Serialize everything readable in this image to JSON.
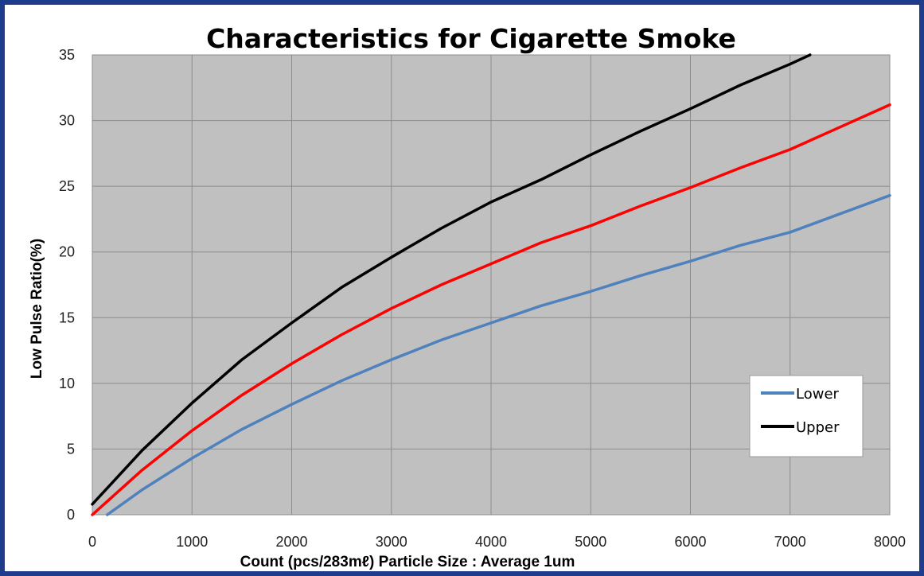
{
  "chart_data": {
    "type": "line",
    "title": "Characteristics for Cigarette Smoke",
    "xlabel": "Count (pcs/283mℓ)  Particle Size : Average 1um",
    "ylabel": "Low Pulse Ratio(%)",
    "xlim": [
      0,
      8000
    ],
    "ylim": [
      0,
      35
    ],
    "xticks": [
      0,
      1000,
      2000,
      3000,
      4000,
      5000,
      6000,
      7000,
      8000
    ],
    "yticks": [
      0,
      5,
      10,
      15,
      20,
      25,
      30,
      35
    ],
    "grid": true,
    "plot_background": "#c0c0c0",
    "legend_position": "bottom-right",
    "series": [
      {
        "name": "",
        "color": "#ff0000",
        "x": [
          0,
          500,
          1000,
          1500,
          2000,
          2500,
          3000,
          3500,
          4000,
          4500,
          5000,
          5500,
          6000,
          6500,
          7000,
          7500,
          8000
        ],
        "y": [
          0,
          3.4,
          6.4,
          9.1,
          11.5,
          13.7,
          15.7,
          17.5,
          19.1,
          20.7,
          22.0,
          23.5,
          24.9,
          26.4,
          27.8,
          29.5,
          31.2
        ]
      },
      {
        "name": "Lower",
        "color": "#4f81bd",
        "x": [
          150,
          500,
          1000,
          1500,
          2000,
          2500,
          3000,
          3500,
          4000,
          4500,
          5000,
          5500,
          6000,
          6500,
          7000,
          7500,
          8000
        ],
        "y": [
          0,
          1.9,
          4.3,
          6.5,
          8.4,
          10.2,
          11.8,
          13.3,
          14.6,
          15.9,
          17.0,
          18.2,
          19.3,
          20.5,
          21.5,
          22.9,
          24.3
        ]
      },
      {
        "name": "Upper",
        "color": "#000000",
        "x": [
          0,
          500,
          1000,
          1500,
          2000,
          2500,
          3000,
          3500,
          4000,
          4500,
          5000,
          5500,
          6000,
          6500,
          7000,
          7200
        ],
        "y": [
          0.8,
          4.9,
          8.5,
          11.8,
          14.6,
          17.3,
          19.6,
          21.8,
          23.8,
          25.5,
          27.4,
          29.2,
          30.9,
          32.7,
          34.3,
          35.0
        ]
      }
    ]
  }
}
